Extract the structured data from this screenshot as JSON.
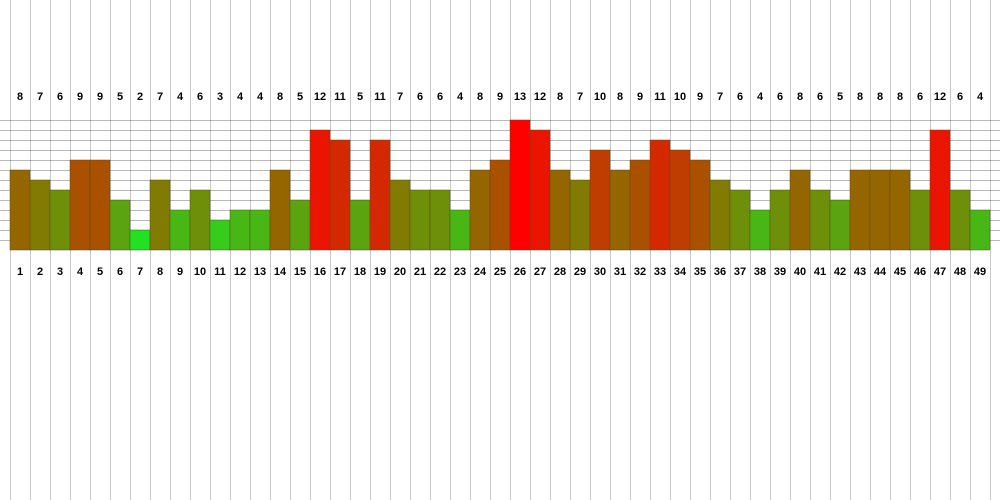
{
  "chart_data": {
    "type": "bar",
    "title": "",
    "xlabel": "",
    "ylabel": "",
    "ylim": [
      0,
      13
    ],
    "categories": [
      "1",
      "2",
      "3",
      "4",
      "5",
      "6",
      "7",
      "8",
      "9",
      "10",
      "11",
      "12",
      "13",
      "14",
      "15",
      "16",
      "17",
      "18",
      "19",
      "20",
      "21",
      "22",
      "23",
      "24",
      "25",
      "26",
      "27",
      "28",
      "29",
      "30",
      "31",
      "32",
      "33",
      "34",
      "35",
      "36",
      "37",
      "38",
      "39",
      "40",
      "41",
      "42",
      "43",
      "44",
      "45",
      "46",
      "47",
      "48",
      "49"
    ],
    "values": [
      8,
      7,
      6,
      9,
      9,
      5,
      2,
      7,
      4,
      6,
      3,
      4,
      4,
      8,
      5,
      12,
      11,
      5,
      11,
      7,
      6,
      6,
      4,
      8,
      9,
      13,
      12,
      8,
      7,
      10,
      8,
      9,
      11,
      10,
      9,
      7,
      6,
      4,
      6,
      8,
      6,
      5,
      8,
      8,
      8,
      6,
      12,
      6,
      4
    ],
    "value_labels_position": "top",
    "grid": true,
    "colors": {
      "low": "#22e022",
      "mid": "#8a7000",
      "high": "#ff0000",
      "vertical_grid": "#c8c8c8",
      "horizontal_grid": "#000000",
      "bar_border": "#5a4a20"
    }
  }
}
